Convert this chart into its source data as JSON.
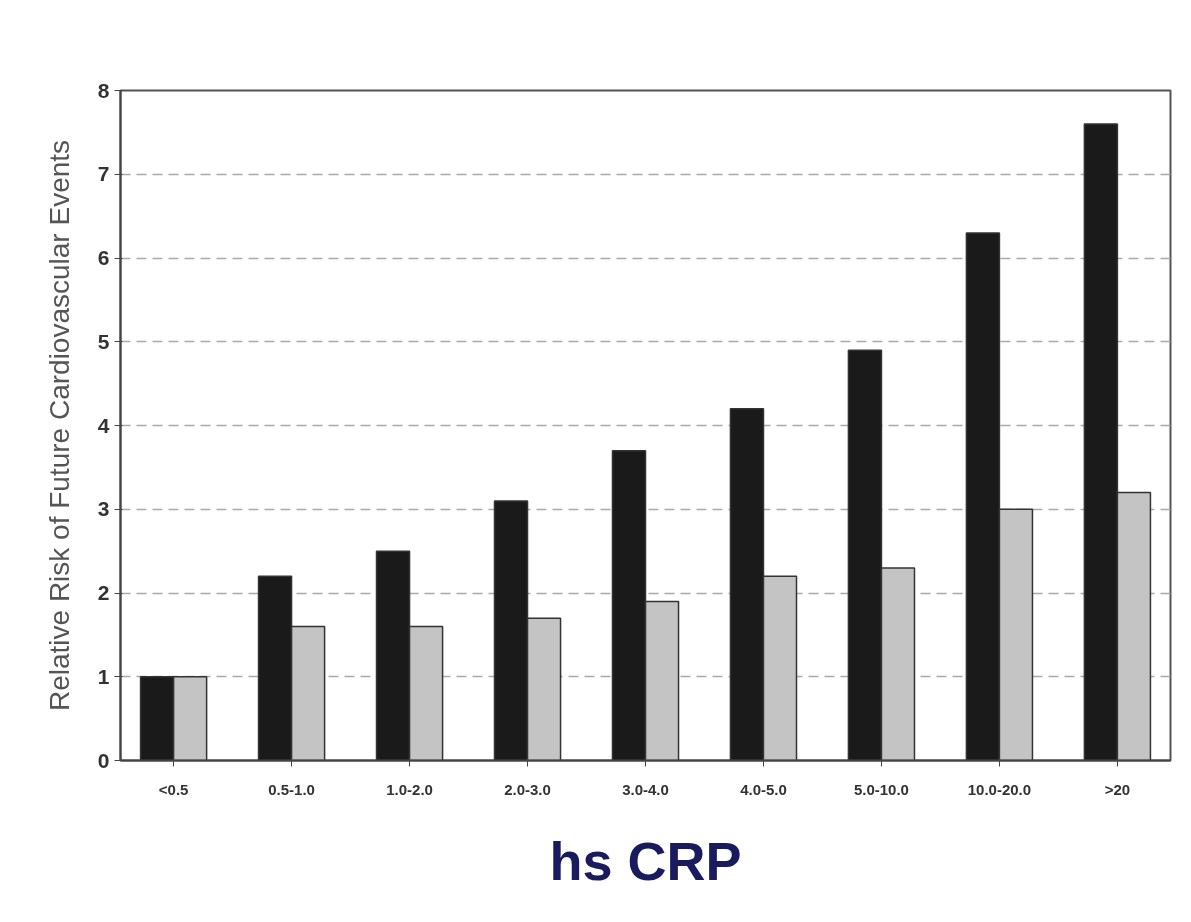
{
  "chart_data": {
    "type": "bar",
    "xlabel": "hs CRP",
    "ylabel": "Relative Risk of Future Cardiovascular Events",
    "categories": [
      "<0.5",
      "0.5-1.0",
      "1.0-2.0",
      "2.0-3.0",
      "3.0-4.0",
      "4.0-5.0",
      "5.0-10.0",
      "10.0-20.0",
      ">20"
    ],
    "series": [
      {
        "color": "#1a1a1a",
        "values": [
          1.0,
          2.2,
          2.5,
          3.1,
          3.7,
          4.2,
          4.9,
          6.3,
          7.6
        ]
      },
      {
        "color": "#c4c4c4",
        "values": [
          1.0,
          1.6,
          1.6,
          1.7,
          1.9,
          2.2,
          2.3,
          3.0,
          3.2
        ]
      }
    ],
    "ylim": [
      0,
      8
    ],
    "yticks": [
      0,
      1,
      2,
      3,
      4,
      5,
      6,
      7,
      8
    ],
    "grid": "y"
  }
}
